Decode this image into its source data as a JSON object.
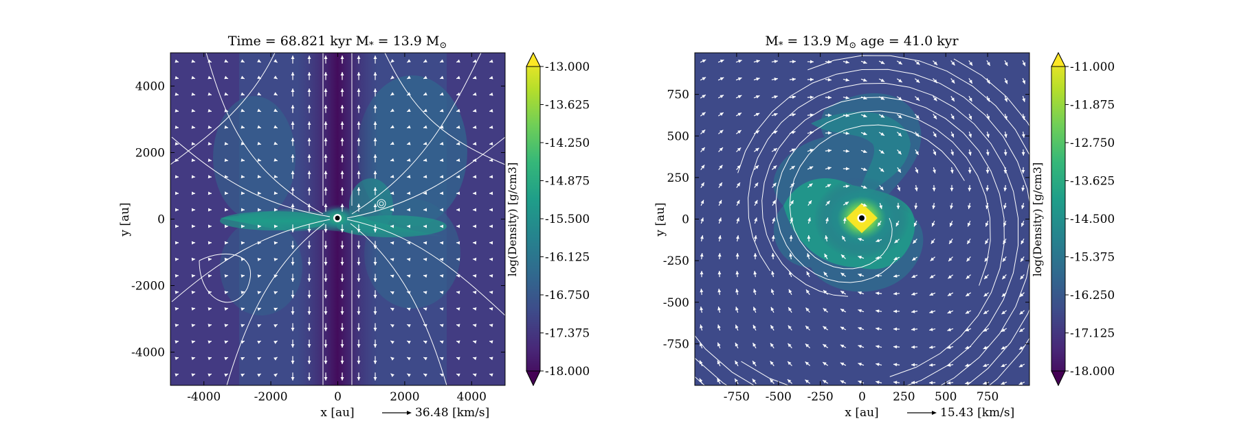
{
  "chart_data": [
    {
      "type": "heatmap",
      "title": "Time = 68.821 kyr    M* = 13.9 M⊙",
      "title_parts": {
        "time": "Time = 68.821 kyr",
        "mass_prefix": "M",
        "mass_sub": "*",
        "mass_value": " = 13.9 M",
        "mass_sun": "⊙"
      },
      "xlabel": "x [au]",
      "ylabel": "y [au]",
      "xlim": [
        -5000,
        5000
      ],
      "ylim": [
        -5000,
        5000
      ],
      "xticks": [
        -4000,
        -2000,
        0,
        2000,
        4000
      ],
      "yticks": [
        -4000,
        -2000,
        0,
        2000,
        4000
      ],
      "xtick_labels": [
        "-4000",
        "-2000",
        "0",
        "2000",
        "4000"
      ],
      "ytick_labels": [
        "-4000",
        "-2000",
        "0",
        "2000",
        "4000"
      ],
      "colorbar": {
        "label": "log(Density) [g/cm3]",
        "range": [
          -18.0,
          -13.0
        ],
        "ticks": [
          "-13.000",
          "-13.625",
          "-14.250",
          "-14.875",
          "-15.500",
          "-16.125",
          "-16.750",
          "-17.375",
          "-18.000"
        ],
        "colormap": "viridis",
        "extend": "both"
      },
      "reference_vector": {
        "value": 36.48,
        "label": "36.48 [km/s]"
      },
      "overlays": [
        "velocity streamlines",
        "velocity arrows"
      ],
      "features": [
        "edge-on disk along y = 0",
        "bipolar low-density outflow cavity along x ≈ 0",
        "central star at origin"
      ]
    },
    {
      "type": "heatmap",
      "title": "M* = 13.9 M⊙          age = 41.0 kyr",
      "title_parts": {
        "mass_prefix": "M",
        "mass_sub": "*",
        "mass_value": " = 13.9 M",
        "mass_sun": "⊙",
        "age": "age = 41.0 kyr"
      },
      "xlabel": "x [au]",
      "ylabel": "y [au]",
      "xlim": [
        -1000,
        1000
      ],
      "ylim": [
        -1000,
        1000
      ],
      "xticks": [
        -750,
        -500,
        -250,
        0,
        250,
        500,
        750
      ],
      "yticks": [
        -750,
        -500,
        -250,
        0,
        250,
        500,
        750
      ],
      "xtick_labels": [
        "-750",
        "-500",
        "-250",
        "0",
        "250",
        "500",
        "750"
      ],
      "ytick_labels": [
        "-750",
        "-500",
        "-250",
        "0",
        "250",
        "500",
        "750"
      ],
      "colorbar": {
        "label": "log(Density) [g/cm3]",
        "range": [
          -18.0,
          -11.0
        ],
        "ticks": [
          "-11.000",
          "-11.875",
          "-12.750",
          "-13.625",
          "-14.500",
          "-15.375",
          "-16.250",
          "-17.125",
          "-18.000"
        ],
        "colormap": "viridis",
        "extend": "both"
      },
      "reference_vector": {
        "value": 15.43,
        "label": "15.43 [km/s]"
      },
      "overlays": [
        "velocity streamlines",
        "velocity arrows"
      ],
      "features": [
        "face-on disk with spiral arms",
        "bright central density peak",
        "central star at origin"
      ]
    }
  ],
  "colors": {
    "viridis": [
      "#440154",
      "#482878",
      "#3e4a89",
      "#31688e",
      "#26828e",
      "#1f9e89",
      "#35b779",
      "#6ece58",
      "#b5de2b",
      "#fde725"
    ],
    "streamline": "#ffffff",
    "star": "#000000"
  }
}
